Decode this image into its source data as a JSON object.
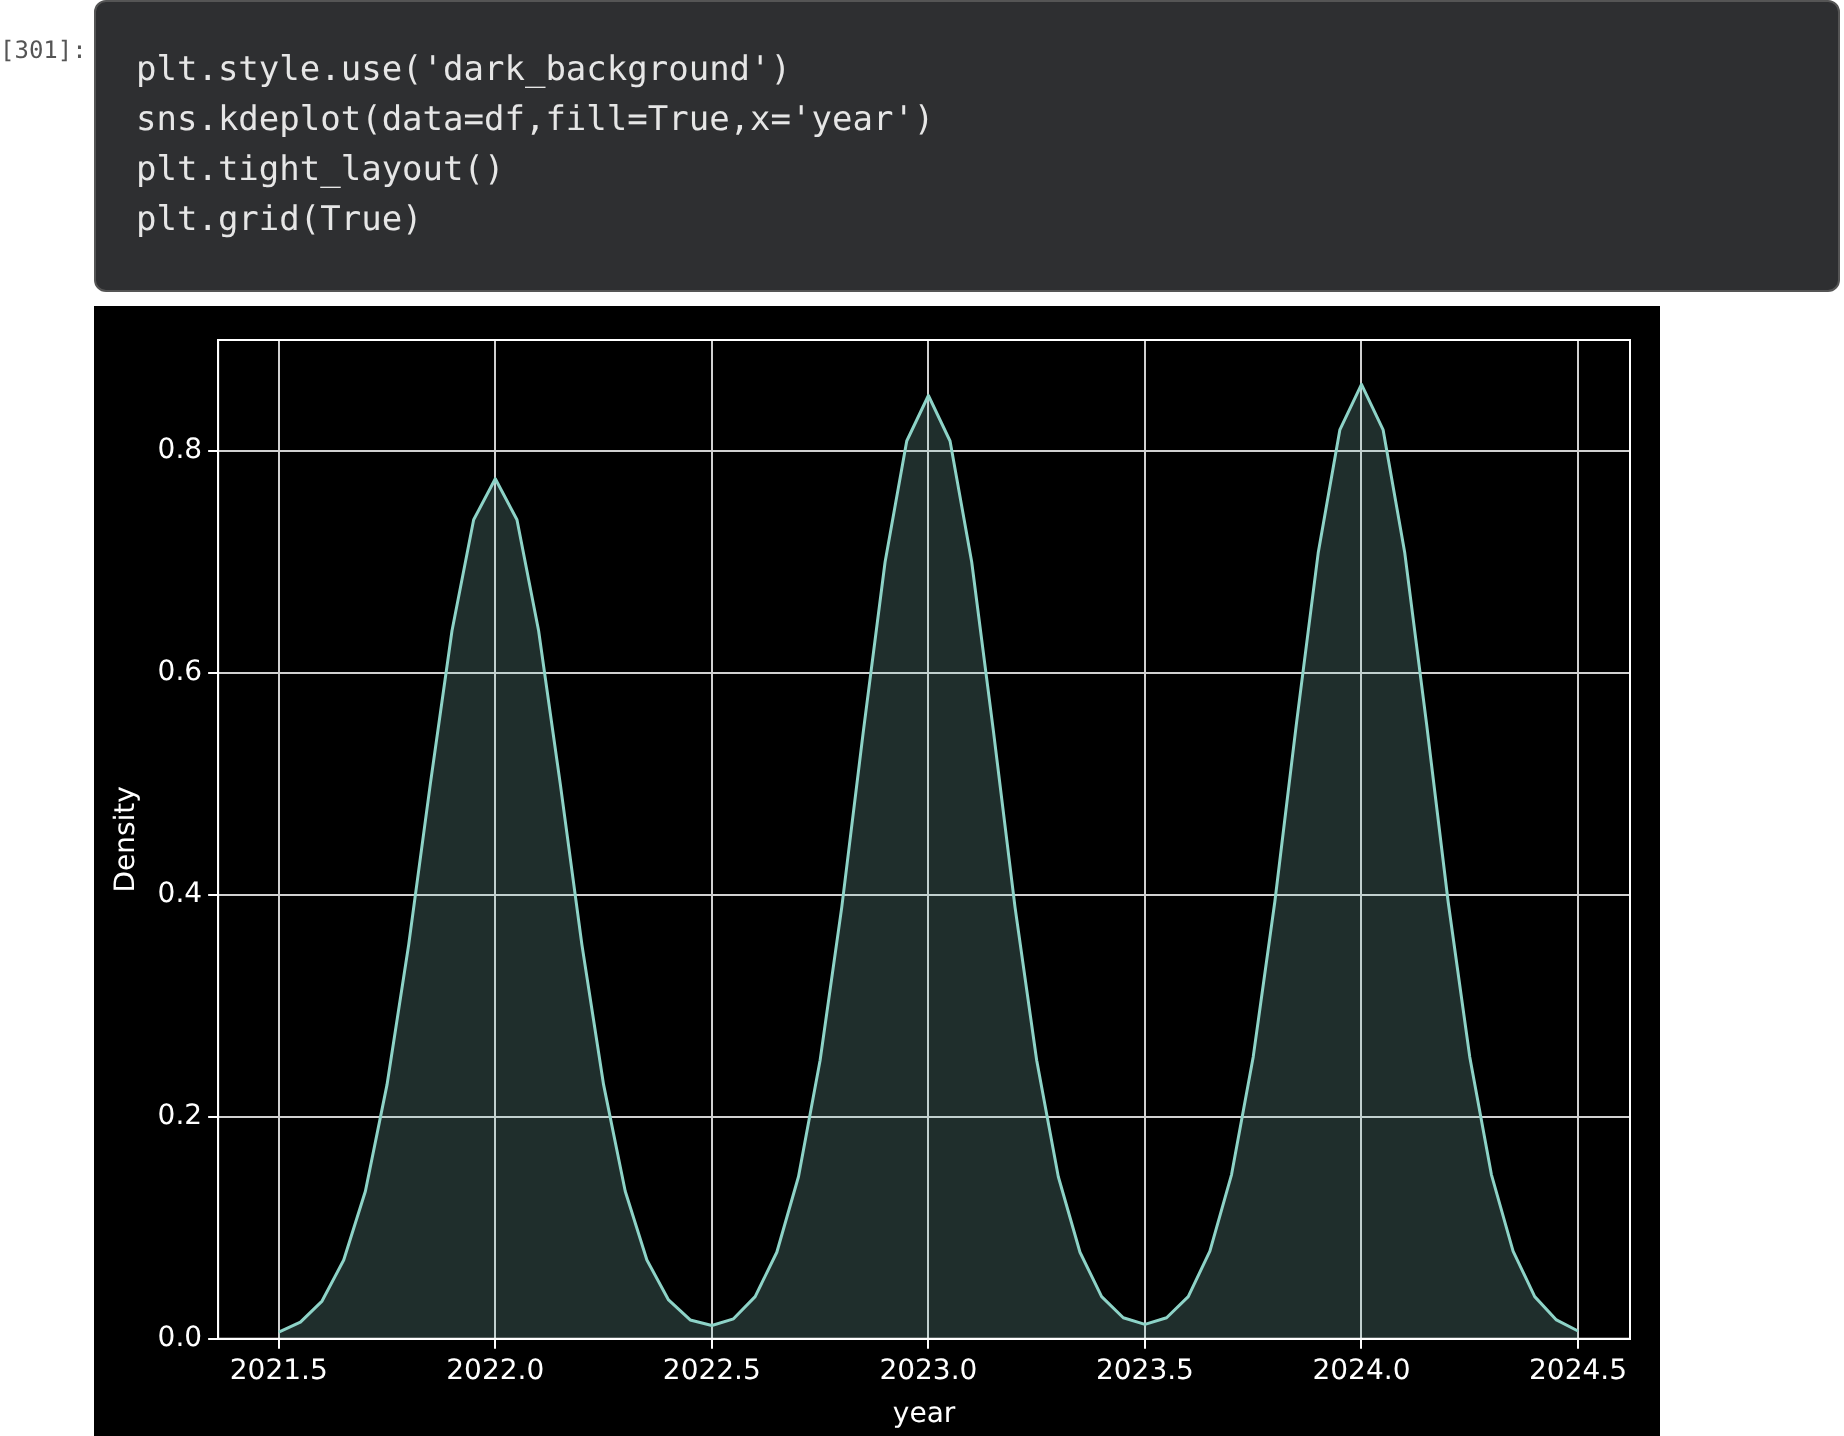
{
  "chart_data": {
    "type": "area",
    "xlabel": "year",
    "ylabel": "Density",
    "annotations": [
      "[301]:",
      "plt.style.use('dark_background')",
      "sns.kdeplot(data=df,fill=True,x='year')",
      "plt.tight_layout()",
      "plt.grid(True)"
    ],
    "x": [
      2021.5,
      2021.55,
      2021.6,
      2021.65,
      2021.7,
      2021.75,
      2021.8,
      2021.85,
      2021.9,
      2021.95,
      2022,
      2022.05,
      2022.1,
      2022.15,
      2022.2,
      2022.25,
      2022.3,
      2022.35,
      2022.4,
      2022.45,
      2022.5,
      2022.55,
      2022.6,
      2022.65,
      2022.7,
      2022.75,
      2022.8,
      2022.85,
      2022.9,
      2022.95,
      2023,
      2023.05,
      2023.1,
      2023.15,
      2023.2,
      2023.25,
      2023.3,
      2023.35,
      2023.4,
      2023.45,
      2023.5,
      2023.55,
      2023.6,
      2023.65,
      2023.7,
      2023.75,
      2023.8,
      2023.85,
      2023.9,
      2023.95,
      2024,
      2024.05,
      2024.1,
      2024.15,
      2024.2,
      2024.25,
      2024.3,
      2024.35,
      2024.4,
      2024.45,
      2024.5
    ],
    "series": [
      {
        "color": "#8dd3c7",
        "values": [
          0.006,
          0.015,
          0.034,
          0.071,
          0.133,
          0.229,
          0.355,
          0.5,
          0.638,
          0.738,
          0.775,
          0.738,
          0.638,
          0.5,
          0.355,
          0.229,
          0.133,
          0.071,
          0.035,
          0.017,
          0.012,
          0.018,
          0.038,
          0.078,
          0.146,
          0.251,
          0.389,
          0.548,
          0.7,
          0.809,
          0.85,
          0.809,
          0.7,
          0.548,
          0.389,
          0.251,
          0.146,
          0.078,
          0.038,
          0.019,
          0.013,
          0.019,
          0.038,
          0.079,
          0.148,
          0.254,
          0.394,
          0.555,
          0.708,
          0.819,
          0.86,
          0.819,
          0.708,
          0.555,
          0.394,
          0.254,
          0.148,
          0.079,
          0.038,
          0.017,
          0.007
        ]
      }
    ],
    "xlim": [
      2021.36,
      2024.62
    ],
    "xticks": [
      2021.5,
      {
        "value": 2022,
        "label": "2022.0"
      },
      2022.5,
      {
        "value": 2023,
        "label": "2023.0"
      },
      2023.5,
      {
        "value": 2024,
        "label": "2024.0"
      },
      2024.5
    ],
    "ylim": [
      0,
      0.9
    ],
    "yticks": [
      {
        "value": 0,
        "label": "0.0"
      },
      0.2,
      0.4,
      0.6,
      0.8
    ],
    "grid": true,
    "marker": "none",
    "line_style": "solid"
  }
}
